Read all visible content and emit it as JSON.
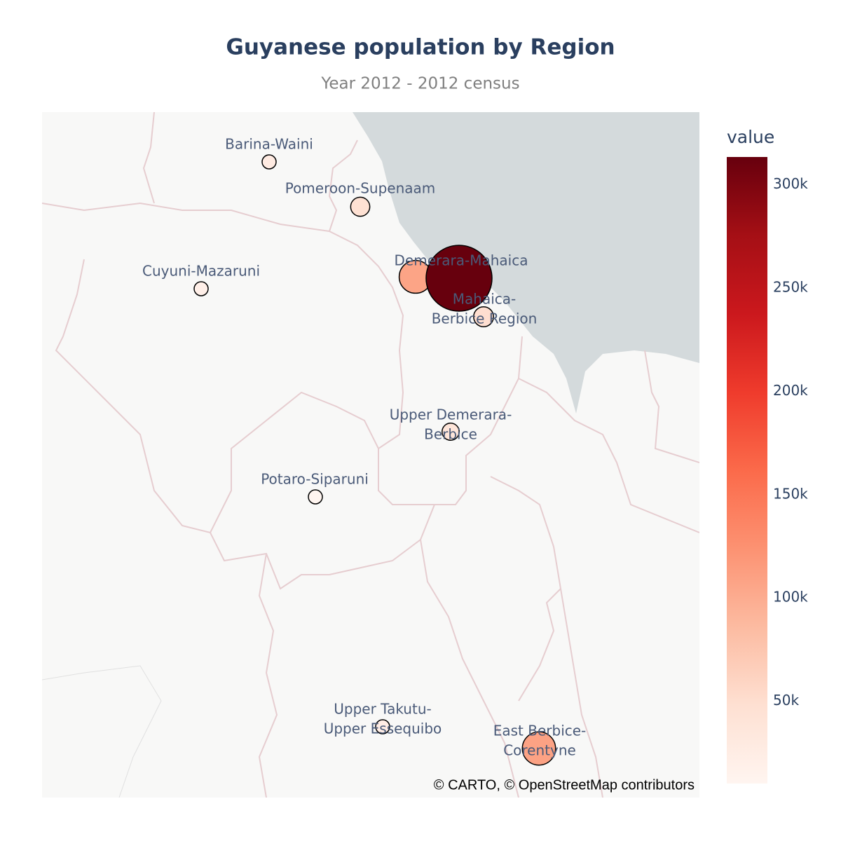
{
  "chart_data": {
    "type": "bubble-map",
    "title": "Guyanese population by Region",
    "subtitle": "Year 2012 - 2012 census",
    "attribution": "© CARTO, © OpenStreetMap contributors",
    "categories": [
      [
        "Barina-Waini"
      ],
      [
        "Pomeroon-Supenaam"
      ],
      null,
      [
        "Demerara-Mahaica"
      ],
      [
        "Mahaica-",
        "Berbice Region"
      ],
      [
        "East Berbice-",
        "Corentyne"
      ],
      [
        "Cuyuni-Mazaruni"
      ],
      [
        "Potaro-Siparuni"
      ],
      [
        "Upper Takutu-",
        "Upper Essequibo"
      ],
      [
        "Upper Demerara-",
        "Berbice"
      ]
    ],
    "values": [
      27643,
      46810,
      107416,
      313429,
      49723,
      109431,
      20280,
      10190,
      24212,
      39452
    ],
    "marker_line_color": "#000000",
    "colorbar": {
      "title": "value",
      "range": [
        10190,
        313429
      ],
      "ticks": [
        {
          "value": 50000,
          "label": "50k"
        },
        {
          "value": 100000,
          "label": "100k"
        },
        {
          "value": 150000,
          "label": "150k"
        },
        {
          "value": 200000,
          "label": "200k"
        },
        {
          "value": 250000,
          "label": "250k"
        },
        {
          "value": 300000,
          "label": "300k"
        }
      ],
      "colorscale": [
        [
          0,
          "#fff5f0"
        ],
        [
          0.125,
          "#fee0d2"
        ],
        [
          0.25,
          "#fcbba1"
        ],
        [
          0.375,
          "#fc9272"
        ],
        [
          0.5,
          "#fb6a4a"
        ],
        [
          0.625,
          "#ef3b2c"
        ],
        [
          0.75,
          "#cb181d"
        ],
        [
          0.875,
          "#a50f15"
        ],
        [
          1,
          "#67000d"
        ]
      ]
    }
  }
}
